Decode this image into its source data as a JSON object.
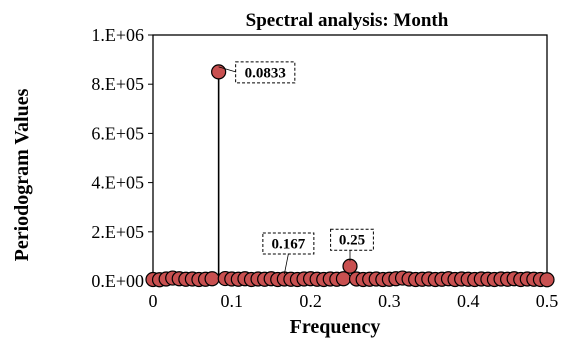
{
  "chart_data": {
    "type": "scatter",
    "title": "Spectral analysis:  Month",
    "xlabel": "Frequency",
    "ylabel": "Periodogram Values",
    "xlim": [
      0,
      0.5
    ],
    "ylim": [
      0,
      1000000
    ],
    "xticks": [
      0,
      0.1,
      0.2,
      0.3,
      0.4,
      0.5
    ],
    "xtick_labels": [
      "0",
      "0.1",
      "0.2",
      "0.3",
      "0.4",
      "0.5"
    ],
    "yticks": [
      0,
      200000,
      400000,
      600000,
      800000,
      1000000
    ],
    "ytick_labels": [
      "0.E+00",
      "2.E+05",
      "4.E+05",
      "6.E+05",
      "8.E+05",
      "1.E+06"
    ],
    "grid": false,
    "legend": "none",
    "colors": {
      "marker_fill": "#c85050",
      "marker_stroke": "#000000",
      "stem": "#000000"
    },
    "points": [
      {
        "x": 0.0,
        "y": 6000
      },
      {
        "x": 0.0083,
        "y": 5000
      },
      {
        "x": 0.0167,
        "y": 8000
      },
      {
        "x": 0.025,
        "y": 12000
      },
      {
        "x": 0.0333,
        "y": 9000
      },
      {
        "x": 0.0417,
        "y": 7000
      },
      {
        "x": 0.05,
        "y": 8000
      },
      {
        "x": 0.0583,
        "y": 6000
      },
      {
        "x": 0.0667,
        "y": 7000
      },
      {
        "x": 0.075,
        "y": 9000
      },
      {
        "x": 0.0833,
        "y": 850000
      },
      {
        "x": 0.0917,
        "y": 10000
      },
      {
        "x": 0.1,
        "y": 8000
      },
      {
        "x": 0.1083,
        "y": 7000
      },
      {
        "x": 0.1167,
        "y": 9000
      },
      {
        "x": 0.125,
        "y": 6000
      },
      {
        "x": 0.1333,
        "y": 8000
      },
      {
        "x": 0.1417,
        "y": 7000
      },
      {
        "x": 0.15,
        "y": 9000
      },
      {
        "x": 0.1583,
        "y": 6000
      },
      {
        "x": 0.1667,
        "y": 8000
      },
      {
        "x": 0.175,
        "y": 7000
      },
      {
        "x": 0.1833,
        "y": 6000
      },
      {
        "x": 0.1917,
        "y": 8000
      },
      {
        "x": 0.2,
        "y": 9000
      },
      {
        "x": 0.2083,
        "y": 7000
      },
      {
        "x": 0.2167,
        "y": 6000
      },
      {
        "x": 0.225,
        "y": 8000
      },
      {
        "x": 0.2333,
        "y": 7000
      },
      {
        "x": 0.2417,
        "y": 9000
      },
      {
        "x": 0.25,
        "y": 60000
      },
      {
        "x": 0.2583,
        "y": 8000
      },
      {
        "x": 0.2667,
        "y": 6000
      },
      {
        "x": 0.275,
        "y": 7000
      },
      {
        "x": 0.2833,
        "y": 8000
      },
      {
        "x": 0.2917,
        "y": 6000
      },
      {
        "x": 0.3,
        "y": 7000
      },
      {
        "x": 0.3083,
        "y": 9000
      },
      {
        "x": 0.3167,
        "y": 12000
      },
      {
        "x": 0.325,
        "y": 8000
      },
      {
        "x": 0.3333,
        "y": 6000
      },
      {
        "x": 0.3417,
        "y": 7000
      },
      {
        "x": 0.35,
        "y": 8000
      },
      {
        "x": 0.3583,
        "y": 6000
      },
      {
        "x": 0.3667,
        "y": 7000
      },
      {
        "x": 0.375,
        "y": 9000
      },
      {
        "x": 0.3833,
        "y": 6000
      },
      {
        "x": 0.3917,
        "y": 8000
      },
      {
        "x": 0.4,
        "y": 7000
      },
      {
        "x": 0.4083,
        "y": 6000
      },
      {
        "x": 0.4167,
        "y": 8000
      },
      {
        "x": 0.425,
        "y": 7000
      },
      {
        "x": 0.4333,
        "y": 6000
      },
      {
        "x": 0.4417,
        "y": 8000
      },
      {
        "x": 0.45,
        "y": 7000
      },
      {
        "x": 0.4583,
        "y": 9000
      },
      {
        "x": 0.4667,
        "y": 6000
      },
      {
        "x": 0.475,
        "y": 8000
      },
      {
        "x": 0.4833,
        "y": 7000
      },
      {
        "x": 0.4917,
        "y": 6000
      },
      {
        "x": 0.5,
        "y": 5000
      }
    ],
    "stems": [
      {
        "x": 0.0833,
        "y": 850000
      }
    ],
    "annotations": [
      {
        "text": "0.0833",
        "x": 0.0833,
        "y": 850000,
        "position": "right"
      },
      {
        "text": "0.167",
        "x": 0.1667,
        "y": 8000,
        "position": "above"
      },
      {
        "text": "0.25",
        "x": 0.25,
        "y": 60000,
        "position": "above"
      }
    ]
  }
}
